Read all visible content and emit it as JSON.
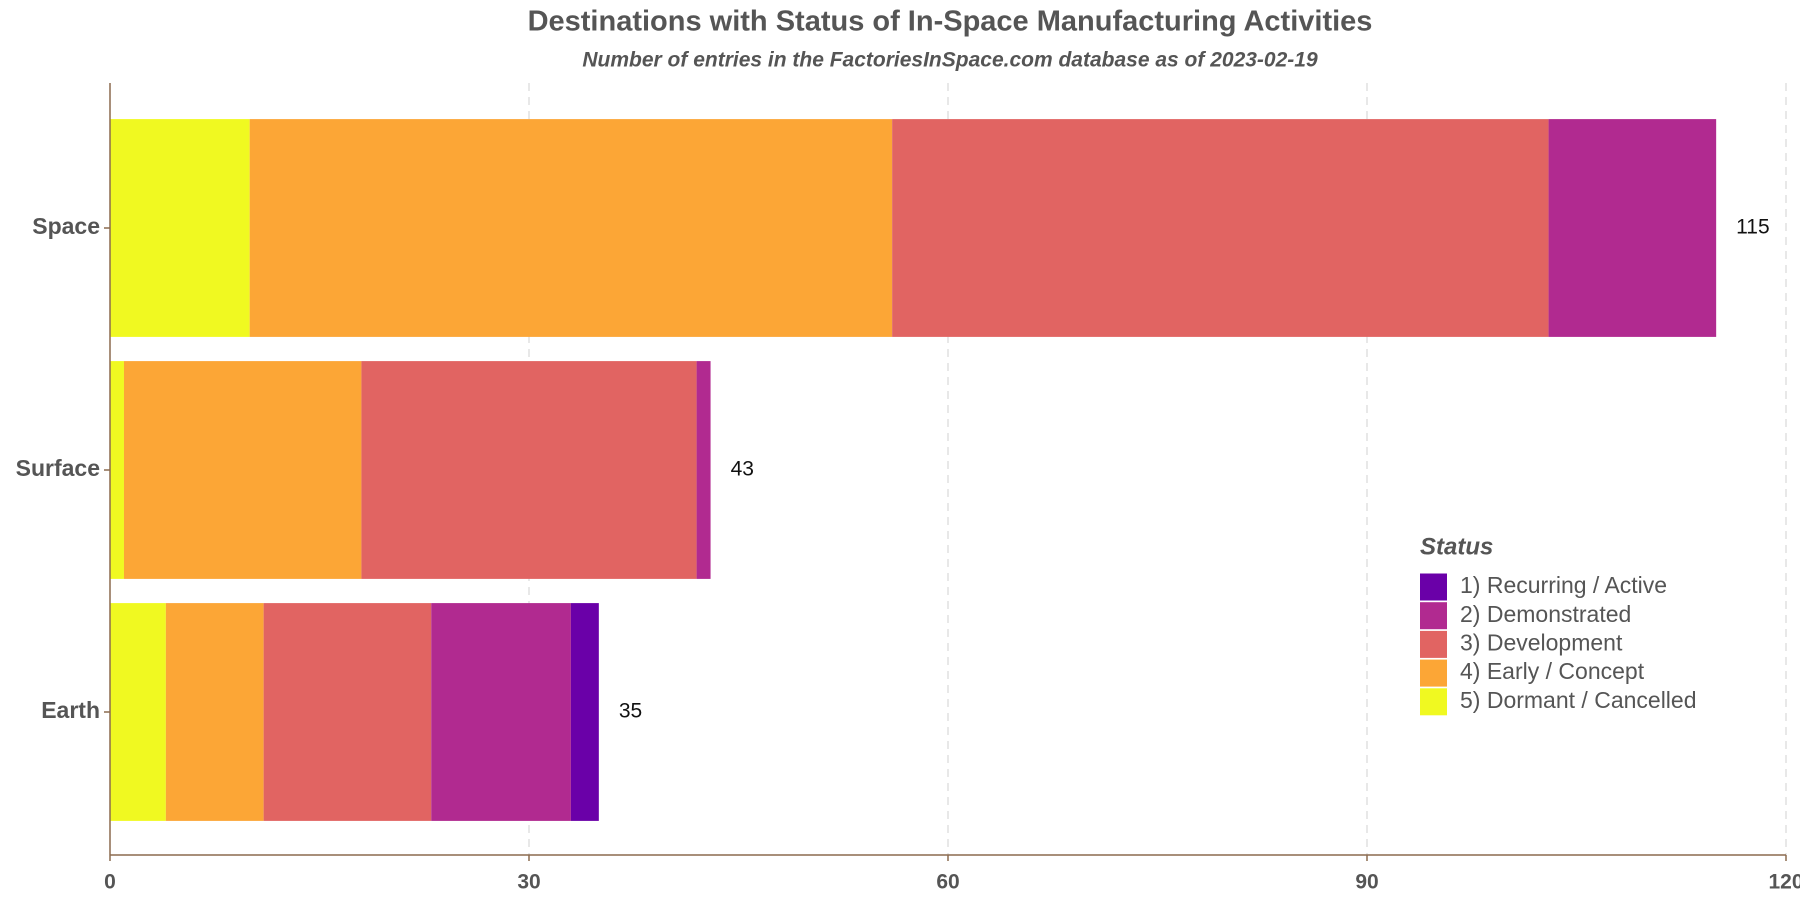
{
  "chart_data": {
    "type": "bar",
    "orientation": "horizontal",
    "stacked": true,
    "title": "Destinations with Status of In-Space Manufacturing Activities",
    "subtitle": "Number of entries in the FactoriesInSpace.com database as of 2023-02-19",
    "categories": [
      "Space",
      "Surface",
      "Earth"
    ],
    "series": [
      {
        "name": "1) Recurring / Active",
        "color": "#6a00a8",
        "values": [
          0,
          0,
          2
        ]
      },
      {
        "name": "2) Demonstrated",
        "color": "#b12a90",
        "values": [
          12,
          1,
          10
        ]
      },
      {
        "name": "3) Development",
        "color": "#e16462",
        "values": [
          47,
          24,
          12
        ]
      },
      {
        "name": "4) Early / Concept",
        "color": "#fca636",
        "values": [
          46,
          17,
          7
        ]
      },
      {
        "name": "5) Dormant / Cancelled",
        "color": "#f0f921",
        "values": [
          10,
          1,
          4
        ]
      }
    ],
    "totals": [
      115,
      43,
      35
    ],
    "legend_title": "Status",
    "xlim": [
      0,
      120
    ],
    "xticks": [
      0,
      30,
      60,
      90,
      120
    ],
    "grid": true
  }
}
